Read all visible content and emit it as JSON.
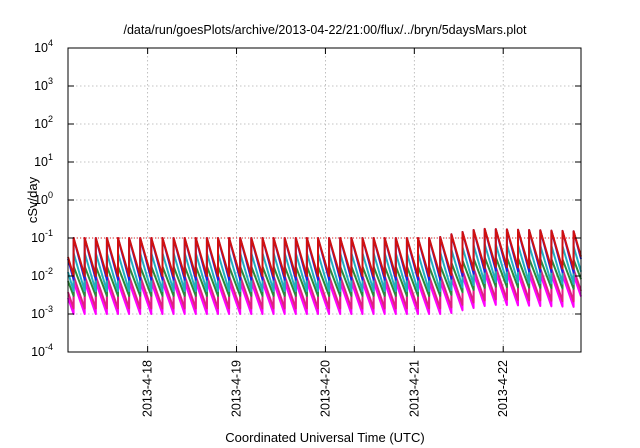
{
  "chart_data": {
    "type": "line",
    "title": "/data/run/goesPlots/archive/2013-04-22/21:00/flux/../bryn/5daysMars.plot",
    "xlabel": "Coordinated Universal Time (UTC)",
    "ylabel": "cSv/day",
    "yscale": "log",
    "ylim": [
      0.0001,
      10000
    ],
    "xlim": [
      "2013-04-17 02:30",
      "2013-04-22 21:00"
    ],
    "grid": true,
    "y_ticks": [
      {
        "base": "10",
        "exp": "-4"
      },
      {
        "base": "10",
        "exp": "-3"
      },
      {
        "base": "10",
        "exp": "-2"
      },
      {
        "base": "10",
        "exp": "-1"
      },
      {
        "base": "10",
        "exp": "0"
      },
      {
        "base": "10",
        "exp": "1"
      },
      {
        "base": "10",
        "exp": "2"
      },
      {
        "base": "10",
        "exp": "3"
      },
      {
        "base": "10",
        "exp": "4"
      }
    ],
    "x_ticks": [
      "2013-4-18",
      "2013-4-19",
      "2013-4-20",
      "2013-4-21",
      "2013-4-22"
    ],
    "reference_line": {
      "value": 0.1,
      "color": "#e02020"
    },
    "sawtooth_period_hours": 3,
    "series": [
      {
        "color": "#d01010",
        "peak": 0.1,
        "trough": 0.01
      },
      {
        "color": "#2020e0",
        "peak": 0.1,
        "trough": 0.008
      },
      {
        "color": "#20b0c0",
        "peak": 0.04,
        "trough": 0.004
      },
      {
        "color": "#2a8a3a",
        "peak": 0.018,
        "trough": 0.003
      },
      {
        "color": "#e02080",
        "peak": 0.01,
        "trough": 0.0014
      },
      {
        "color": "#ff00ff",
        "peak": 0.007,
        "trough": 0.001
      }
    ],
    "enhancement": {
      "start": "2013-04-21 06:00",
      "peak_time": "2013-04-21 18:00",
      "end": "2013-04-22 21:00",
      "peak_factor": 1.75
    }
  }
}
